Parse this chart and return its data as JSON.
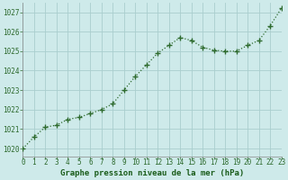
{
  "hours": [
    0,
    1,
    2,
    3,
    4,
    5,
    6,
    7,
    8,
    9,
    10,
    11,
    12,
    13,
    14,
    15,
    16,
    17,
    18,
    19,
    20,
    21,
    22,
    23
  ],
  "pressure": [
    1020.0,
    1020.6,
    1021.1,
    1021.2,
    1021.5,
    1021.6,
    1021.8,
    1022.0,
    1022.3,
    1023.0,
    1023.7,
    1024.3,
    1024.9,
    1025.3,
    1025.7,
    1025.55,
    1025.2,
    1025.05,
    1025.0,
    1025.0,
    1025.3,
    1025.55,
    1026.3,
    1027.2
  ],
  "xlim": [
    0,
    23
  ],
  "ylim": [
    1019.6,
    1027.5
  ],
  "yticks": [
    1020,
    1021,
    1022,
    1023,
    1024,
    1025,
    1026,
    1027
  ],
  "xticks": [
    0,
    1,
    2,
    3,
    4,
    5,
    6,
    7,
    8,
    9,
    10,
    11,
    12,
    13,
    14,
    15,
    16,
    17,
    18,
    19,
    20,
    21,
    22,
    23
  ],
  "line_color": "#2d6a2d",
  "marker_color": "#2d6a2d",
  "bg_color": "#ceeaea",
  "grid_color": "#aacece",
  "xlabel": "Graphe pression niveau de la mer (hPa)",
  "xlabel_color": "#1a5c1a",
  "xlabel_fontsize": 6.5,
  "tick_fontsize": 5.5,
  "ytick_fontsize": 5.5,
  "line_width": 0.9,
  "marker_size": 2.5
}
